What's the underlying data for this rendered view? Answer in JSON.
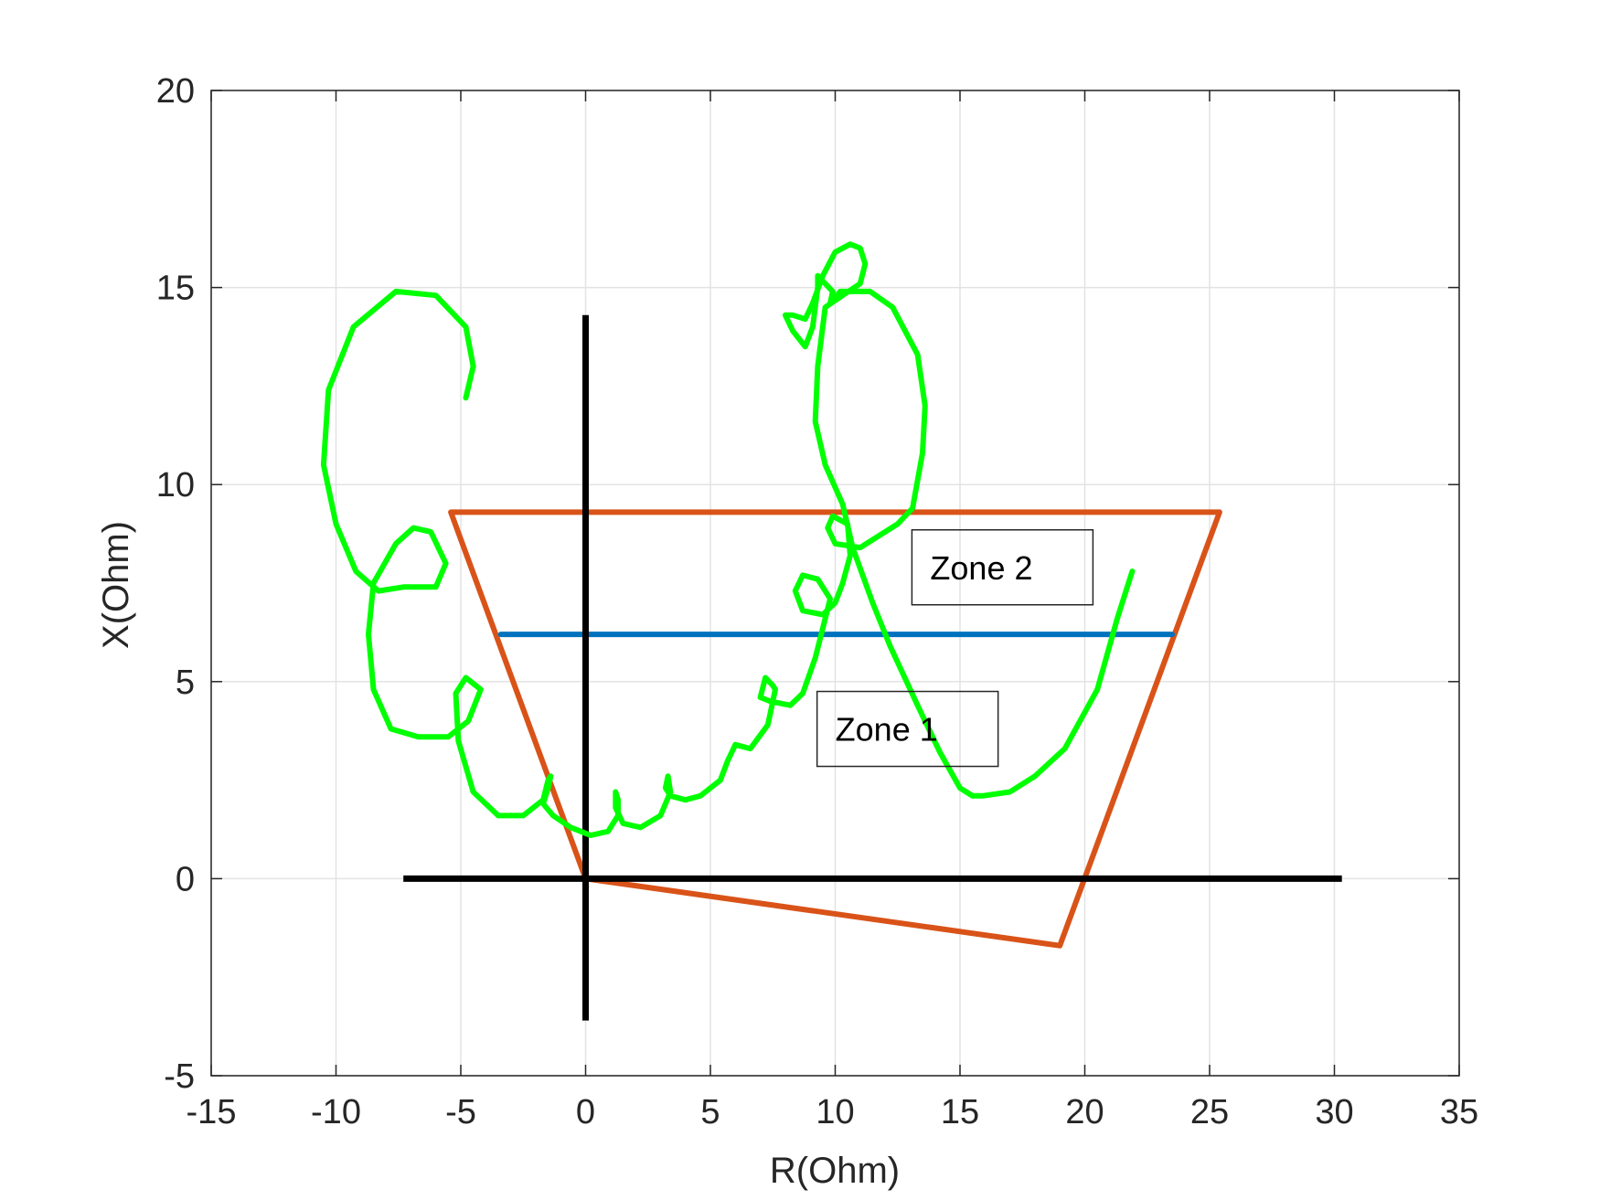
{
  "chart_data": {
    "type": "line",
    "title": "",
    "xlabel": "R(Ohm)",
    "ylabel": "X(Ohm)",
    "xlim": [
      -15,
      35
    ],
    "ylim": [
      -5,
      20
    ],
    "xticks": [
      -15,
      -10,
      -5,
      0,
      5,
      10,
      15,
      20,
      25,
      30,
      35
    ],
    "yticks": [
      -5,
      0,
      5,
      10,
      15,
      20
    ],
    "grid": true,
    "legend": "none",
    "colors": {
      "zone1": "#0072BD",
      "zone2": "#D95319",
      "trajectory": "#00FF00",
      "axes_lines": "#000000",
      "grid": "#e3e3e3"
    },
    "annotations": [
      {
        "text": "Zone 2",
        "x": 16.7,
        "y": 7.9
      },
      {
        "text": "Zone 1",
        "x": 12.9,
        "y": 3.8
      }
    ],
    "series": [
      {
        "key": "x_axis_line",
        "points": [
          [
            -7.3,
            0
          ],
          [
            30.3,
            0
          ]
        ]
      },
      {
        "key": "y_axis_line",
        "points": [
          [
            0,
            14.3
          ],
          [
            0,
            -3.6
          ]
        ]
      },
      {
        "key": "zone2",
        "points": [
          [
            0,
            0
          ],
          [
            -5.4,
            9.3
          ],
          [
            25.4,
            9.3
          ],
          [
            19.0,
            -1.7
          ],
          [
            0,
            0
          ]
        ]
      },
      {
        "key": "zone1",
        "points": [
          [
            -3.4,
            6.2
          ],
          [
            23.5,
            6.2
          ]
        ]
      },
      {
        "key": "trajectory",
        "points": [
          [
            -4.8,
            12.2
          ],
          [
            -4.5,
            13.0
          ],
          [
            -4.8,
            14.0
          ],
          [
            -6.0,
            14.8
          ],
          [
            -7.6,
            14.9
          ],
          [
            -9.3,
            14.0
          ],
          [
            -10.3,
            12.4
          ],
          [
            -10.5,
            10.5
          ],
          [
            -10.0,
            9.0
          ],
          [
            -9.2,
            7.8
          ],
          [
            -8.3,
            7.3
          ],
          [
            -7.3,
            7.4
          ],
          [
            -6.0,
            7.4
          ],
          [
            -5.6,
            8.0
          ],
          [
            -6.2,
            8.8
          ],
          [
            -6.9,
            8.9
          ],
          [
            -7.6,
            8.5
          ],
          [
            -8.5,
            7.5
          ],
          [
            -8.7,
            6.2
          ],
          [
            -8.5,
            4.8
          ],
          [
            -7.8,
            3.8
          ],
          [
            -6.7,
            3.6
          ],
          [
            -5.5,
            3.6
          ],
          [
            -4.7,
            4.0
          ],
          [
            -4.2,
            4.8
          ],
          [
            -4.8,
            5.1
          ],
          [
            -5.2,
            4.7
          ],
          [
            -5.1,
            3.5
          ],
          [
            -4.5,
            2.2
          ],
          [
            -3.5,
            1.6
          ],
          [
            -2.5,
            1.6
          ],
          [
            -1.7,
            2.0
          ],
          [
            -1.5,
            2.5
          ],
          [
            -1.4,
            2.6
          ],
          [
            -1.5,
            2.3
          ],
          [
            -1.7,
            1.9
          ],
          [
            -1.3,
            1.6
          ],
          [
            -0.6,
            1.3
          ],
          [
            0.2,
            1.1
          ],
          [
            0.9,
            1.2
          ],
          [
            1.3,
            1.6
          ],
          [
            1.3,
            2.0
          ],
          [
            1.2,
            2.2
          ],
          [
            1.2,
            1.8
          ],
          [
            1.5,
            1.4
          ],
          [
            2.2,
            1.3
          ],
          [
            3.0,
            1.6
          ],
          [
            3.4,
            2.2
          ],
          [
            3.3,
            2.6
          ],
          [
            3.2,
            2.3
          ],
          [
            3.4,
            2.1
          ],
          [
            4.0,
            2.0
          ],
          [
            4.6,
            2.1
          ],
          [
            5.4,
            2.5
          ],
          [
            5.7,
            3.0
          ],
          [
            6.0,
            3.4
          ],
          [
            6.6,
            3.3
          ],
          [
            7.3,
            3.9
          ],
          [
            7.6,
            4.8
          ],
          [
            7.5,
            4.9
          ],
          [
            7.2,
            5.1
          ],
          [
            7.0,
            4.6
          ],
          [
            7.4,
            4.5
          ],
          [
            8.2,
            4.4
          ],
          [
            8.7,
            4.7
          ],
          [
            9.2,
            5.6
          ],
          [
            9.6,
            6.6
          ],
          [
            9.8,
            7.1
          ],
          [
            9.3,
            7.6
          ],
          [
            8.7,
            7.7
          ],
          [
            8.4,
            7.3
          ],
          [
            8.7,
            6.8
          ],
          [
            9.5,
            6.7
          ],
          [
            10.0,
            7.0
          ],
          [
            10.3,
            7.5
          ],
          [
            10.6,
            8.2
          ],
          [
            10.5,
            9.0
          ],
          [
            9.9,
            9.2
          ],
          [
            9.7,
            8.9
          ],
          [
            10.0,
            8.5
          ],
          [
            11.0,
            8.4
          ],
          [
            12.5,
            9.0
          ],
          [
            13.1,
            9.4
          ],
          [
            13.5,
            10.8
          ],
          [
            13.6,
            12.0
          ],
          [
            13.3,
            13.3
          ],
          [
            12.3,
            14.5
          ],
          [
            11.4,
            14.9
          ],
          [
            10.2,
            14.9
          ],
          [
            9.8,
            14.6
          ],
          [
            9.9,
            14.9
          ],
          [
            9.3,
            15.3
          ],
          [
            9.3,
            15.0
          ],
          [
            9.1,
            14.0
          ],
          [
            8.8,
            13.5
          ],
          [
            8.3,
            13.9
          ],
          [
            8.0,
            14.3
          ],
          [
            8.3,
            14.3
          ],
          [
            8.8,
            14.2
          ],
          [
            9.1,
            14.6
          ],
          [
            9.5,
            15.3
          ],
          [
            10.0,
            15.9
          ],
          [
            10.6,
            16.1
          ],
          [
            11.0,
            16.0
          ],
          [
            11.2,
            15.6
          ],
          [
            11.0,
            15.1
          ],
          [
            10.3,
            14.8
          ],
          [
            9.6,
            14.5
          ],
          [
            9.3,
            13.0
          ],
          [
            9.2,
            11.6
          ],
          [
            9.6,
            10.5
          ],
          [
            10.3,
            9.5
          ],
          [
            10.7,
            8.4
          ],
          [
            11.5,
            7.0
          ],
          [
            12.2,
            5.9
          ],
          [
            13.3,
            4.4
          ],
          [
            14.2,
            3.2
          ],
          [
            15.0,
            2.3
          ],
          [
            15.5,
            2.1
          ],
          [
            15.9,
            2.1
          ],
          [
            17.0,
            2.2
          ],
          [
            18.0,
            2.6
          ],
          [
            19.2,
            3.3
          ],
          [
            20.5,
            4.8
          ],
          [
            21.3,
            6.6
          ],
          [
            21.9,
            7.8
          ]
        ]
      }
    ]
  }
}
